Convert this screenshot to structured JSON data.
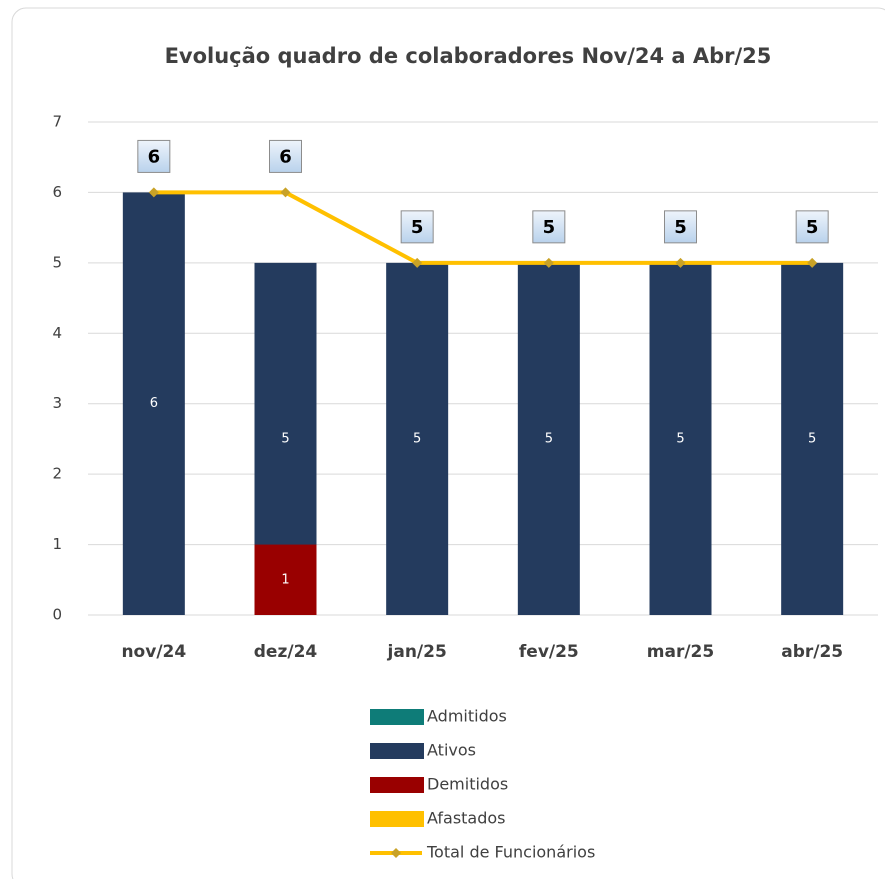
{
  "chart_data": {
    "type": "bar",
    "title": "Evolução quadro de colaboradores Nov/24 a Abr/25",
    "categories": [
      "nov/24",
      "dez/24",
      "jan/25",
      "fev/25",
      "mar/25",
      "abr/25"
    ],
    "series": [
      {
        "name": "Admitidos",
        "type": "bar",
        "color": "#0e7c78",
        "values": [
          null,
          null,
          null,
          null,
          null,
          null
        ]
      },
      {
        "name": "Ativos",
        "type": "bar",
        "color": "#243b5e",
        "values": [
          6,
          5,
          5,
          5,
          5,
          5
        ]
      },
      {
        "name": "Demitidos",
        "type": "bar",
        "color": "#990000",
        "values": [
          null,
          1,
          null,
          null,
          null,
          null
        ]
      },
      {
        "name": "Afastados",
        "type": "bar",
        "color": "#ffc000",
        "values": [
          null,
          null,
          null,
          null,
          null,
          null
        ]
      },
      {
        "name": "Total de Funcionários",
        "type": "line",
        "color": "#ffc000",
        "values": [
          6,
          6,
          5,
          5,
          5,
          5
        ]
      }
    ],
    "ylim": [
      0,
      7
    ],
    "yticks": [
      0,
      1,
      2,
      3,
      4,
      5,
      6,
      7
    ],
    "grid": true,
    "legend": "bottom"
  }
}
